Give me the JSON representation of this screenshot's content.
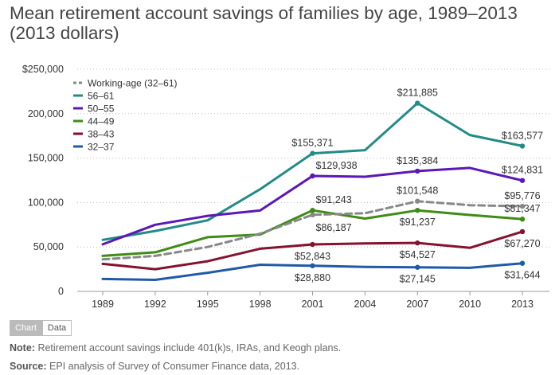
{
  "title": "Mean retirement account savings of families by age, 1989–2013 (2013 dollars)",
  "tabs": {
    "chart": "Chart",
    "data": "Data"
  },
  "note": {
    "label": "Note:",
    "text": "Retirement account savings include 401(k)s, IRAs, and Keogh plans."
  },
  "source": {
    "label": "Source:",
    "text": "EPI analysis of  Survey of Consumer Finance data, 2013."
  },
  "chart_data": {
    "type": "line",
    "x": [
      "1989",
      "1992",
      "1995",
      "1998",
      "2001",
      "2004",
      "2007",
      "2010",
      "2013"
    ],
    "ylim": [
      0,
      250000
    ],
    "yticks": [
      "0",
      "50,000",
      "100,000",
      "150,000",
      "200,000",
      "$250,000"
    ],
    "ytick_values": [
      0,
      50000,
      100000,
      150000,
      200000,
      250000
    ],
    "grid": "horizontal dotted",
    "legend_position": "top-left",
    "series": [
      {
        "name": "Working-age (32–61)",
        "color": "#888888",
        "dashed": true,
        "values": [
          36000,
          40000,
          50000,
          65000,
          86187,
          88000,
          101548,
          97000,
          95776
        ]
      },
      {
        "name": "56–61",
        "color": "#238b87",
        "dashed": false,
        "values": [
          58000,
          68000,
          80000,
          115000,
          155371,
          159000,
          211885,
          176000,
          163577
        ]
      },
      {
        "name": "50–55",
        "color": "#5b18b5",
        "dashed": false,
        "values": [
          53000,
          75000,
          85000,
          91000,
          129938,
          129000,
          135384,
          139000,
          124831
        ]
      },
      {
        "name": "44–49",
        "color": "#3e8c14",
        "dashed": false,
        "values": [
          40000,
          44000,
          61000,
          64000,
          91243,
          82000,
          91237,
          86000,
          81347
        ]
      },
      {
        "name": "38–43",
        "color": "#86112e",
        "dashed": false,
        "values": [
          31000,
          25000,
          34000,
          48000,
          52843,
          54000,
          54527,
          49000,
          67270
        ]
      },
      {
        "name": "32–37",
        "color": "#1f5aa8",
        "dashed": false,
        "values": [
          14000,
          13000,
          21000,
          30000,
          28880,
          27500,
          27145,
          26500,
          31644
        ]
      }
    ],
    "annotations": [
      {
        "series": 1,
        "index": 4,
        "label": "$155,371",
        "pos": "above"
      },
      {
        "series": 1,
        "index": 6,
        "label": "$211,885",
        "pos": "above"
      },
      {
        "series": 1,
        "index": 8,
        "label": "$163,577",
        "pos": "above"
      },
      {
        "series": 2,
        "index": 4,
        "label": "$129,938",
        "pos": "above-right"
      },
      {
        "series": 2,
        "index": 6,
        "label": "$135,384",
        "pos": "above"
      },
      {
        "series": 2,
        "index": 8,
        "label": "$124,831",
        "pos": "above"
      },
      {
        "series": 0,
        "index": 4,
        "label": "$86,187",
        "pos": "below-right"
      },
      {
        "series": 0,
        "index": 6,
        "label": "$101,548",
        "pos": "above"
      },
      {
        "series": 0,
        "index": 8,
        "label": "$95,776",
        "pos": "above"
      },
      {
        "series": 3,
        "index": 4,
        "label": "$91,243",
        "pos": "above-right"
      },
      {
        "series": 3,
        "index": 6,
        "label": "$91,237",
        "pos": "below"
      },
      {
        "series": 3,
        "index": 8,
        "label": "$81,347",
        "pos": "above"
      },
      {
        "series": 4,
        "index": 4,
        "label": "$52,843",
        "pos": "below"
      },
      {
        "series": 4,
        "index": 6,
        "label": "$54,527",
        "pos": "below"
      },
      {
        "series": 4,
        "index": 8,
        "label": "$67,270",
        "pos": "below"
      },
      {
        "series": 5,
        "index": 4,
        "label": "$28,880",
        "pos": "below"
      },
      {
        "series": 5,
        "index": 6,
        "label": "$27,145",
        "pos": "below"
      },
      {
        "series": 5,
        "index": 8,
        "label": "$31,644",
        "pos": "below"
      }
    ]
  }
}
